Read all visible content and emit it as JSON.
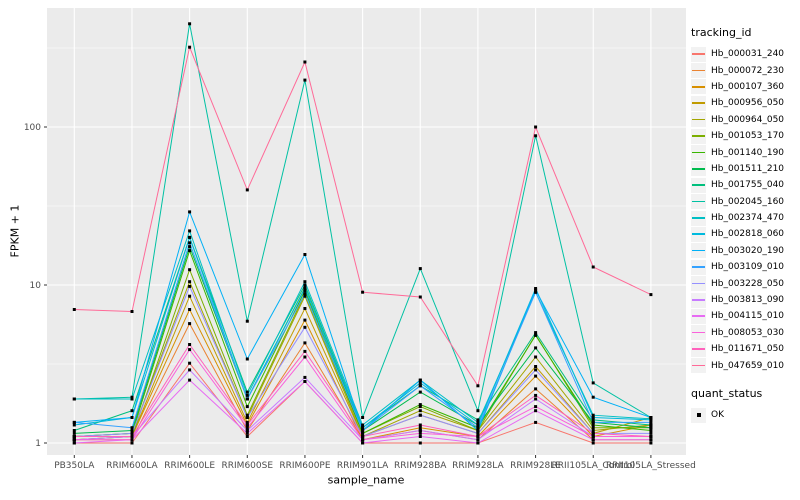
{
  "axes": {
    "y_title": "FPKM + 1",
    "x_title": "sample_name"
  },
  "legend": {
    "tracking_title": "tracking_id",
    "quant_title": "quant_status",
    "quant_label": "OK"
  },
  "colors": {
    "panel_background": "#EBEBEB",
    "grid": "#FFFFFF",
    "tick_text": "#4D4D4D",
    "tick_mark": "#333333",
    "legend_key_background": "#F2F2F2",
    "marker": "#000000"
  },
  "chart_data": {
    "type": "line",
    "title": "",
    "xlabel": "sample_name",
    "ylabel": "FPKM + 1",
    "y_scale": "log10",
    "y_ticks": [
      1,
      10,
      100
    ],
    "y_minor_ticks": [
      3.162,
      31.62,
      316.2
    ],
    "ylim": [
      1,
      480
    ],
    "grid": true,
    "legend_position": "right",
    "marker_shape": "black-square",
    "marker_legend": {
      "title": "quant_status",
      "items": [
        "OK"
      ]
    },
    "categories": [
      "PB350LA",
      "RRIM600LA",
      "RRIM600LE",
      "RRIM600SE",
      "RRIM600PE",
      "RRIM901LA",
      "RRIM928BA",
      "RRIM928LA",
      "RRIM928LE",
      "RRII105LA_Control",
      "RRII105LA_Stressed"
    ],
    "series": [
      {
        "name": "Hb_000031_240",
        "color": "#F8766D",
        "values": [
          1.0,
          1.0,
          3.2,
          1.1,
          2.45,
          1.0,
          1.0,
          1.0,
          1.35,
          1.0,
          1.0
        ]
      },
      {
        "name": "Hb_000072_230",
        "color": "#EA8331",
        "values": [
          1.05,
          1.05,
          5.7,
          1.2,
          4.3,
          1.05,
          1.2,
          1.05,
          2.2,
          1.05,
          1.05
        ]
      },
      {
        "name": "Hb_000107_360",
        "color": "#D89000",
        "values": [
          1.05,
          1.1,
          7.0,
          1.3,
          6.0,
          1.05,
          1.25,
          1.1,
          2.65,
          1.1,
          1.3
        ]
      },
      {
        "name": "Hb_000956_050",
        "color": "#C09B00",
        "values": [
          1.1,
          1.1,
          8.5,
          1.35,
          7.1,
          1.1,
          1.5,
          1.15,
          3.05,
          1.15,
          1.45
        ]
      },
      {
        "name": "Hb_000964_050",
        "color": "#A3A500",
        "values": [
          1.1,
          1.15,
          10.5,
          1.45,
          8.5,
          1.1,
          1.6,
          1.2,
          3.5,
          1.2,
          1.3
        ]
      },
      {
        "name": "Hb_001053_170",
        "color": "#7CAE00",
        "values": [
          1.05,
          1.1,
          12.5,
          1.5,
          8.8,
          1.15,
          1.7,
          1.2,
          4.85,
          1.25,
          1.25
        ]
      },
      {
        "name": "Hb_001140_190",
        "color": "#39B600",
        "values": [
          1.1,
          1.15,
          16.5,
          1.7,
          9.2,
          1.15,
          1.75,
          1.25,
          4.8,
          1.3,
          1.2
        ]
      },
      {
        "name": "Hb_001511_210",
        "color": "#00BB4E",
        "values": [
          1.15,
          1.2,
          17.5,
          1.9,
          9.6,
          1.2,
          2.1,
          1.3,
          4.0,
          1.35,
          1.25
        ]
      },
      {
        "name": "Hb_001755_040",
        "color": "#00BF7D",
        "values": [
          1.2,
          1.6,
          20.0,
          2.1,
          10.0,
          1.25,
          2.3,
          1.4,
          5.0,
          1.4,
          1.3
        ]
      },
      {
        "name": "Hb_002045_160",
        "color": "#00C1A3",
        "values": [
          1.9,
          1.95,
          450,
          5.9,
          198,
          1.45,
          12.7,
          1.6,
          88,
          2.4,
          1.45
        ]
      },
      {
        "name": "Hb_002374_470",
        "color": "#00BFC4",
        "values": [
          1.9,
          1.9,
          22.0,
          2.0,
          10.5,
          1.3,
          2.5,
          1.35,
          9.0,
          1.5,
          1.42
        ]
      },
      {
        "name": "Hb_002818_060",
        "color": "#00BADE",
        "values": [
          1.3,
          1.45,
          20.0,
          1.9,
          9.5,
          1.25,
          2.4,
          1.3,
          9.5,
          1.45,
          1.4
        ]
      },
      {
        "name": "Hb_003020_190",
        "color": "#00B0F6",
        "values": [
          1.35,
          1.45,
          29.0,
          3.4,
          15.6,
          1.2,
          2.5,
          1.2,
          9.3,
          1.95,
          1.45
        ]
      },
      {
        "name": "Hb_003109_010",
        "color": "#35A2FF",
        "values": [
          1.35,
          1.25,
          18.5,
          1.9,
          8.8,
          1.2,
          2.3,
          1.25,
          9.0,
          1.35,
          1.35
        ]
      },
      {
        "name": "Hb_003228_050",
        "color": "#9590FF",
        "values": [
          1.1,
          1.15,
          9.8,
          1.45,
          5.4,
          1.1,
          1.5,
          1.15,
          2.9,
          1.15,
          1.15
        ]
      },
      {
        "name": "Hb_003813_090",
        "color": "#C77CFF",
        "values": [
          1.05,
          1.1,
          2.9,
          1.2,
          2.6,
          1.05,
          1.2,
          1.05,
          1.9,
          1.1,
          1.1
        ]
      },
      {
        "name": "Hb_004115_010",
        "color": "#E76BF3",
        "values": [
          1.0,
          1.05,
          2.5,
          1.15,
          2.45,
          1.0,
          1.1,
          1.0,
          1.6,
          1.05,
          1.05
        ]
      },
      {
        "name": "Hb_008053_030",
        "color": "#FA62DB",
        "values": [
          1.05,
          1.05,
          3.9,
          1.25,
          3.5,
          1.05,
          1.15,
          1.1,
          1.7,
          1.1,
          1.1
        ]
      },
      {
        "name": "Hb_011671_050",
        "color": "#FF62BC",
        "values": [
          1.1,
          1.1,
          4.2,
          1.3,
          3.8,
          1.1,
          1.3,
          1.1,
          2.0,
          1.15,
          1.1
        ]
      },
      {
        "name": "Hb_047659_010",
        "color": "#FF6A98",
        "values": [
          7.0,
          6.8,
          320,
          40,
          258,
          9.0,
          8.4,
          2.3,
          100,
          13,
          8.7
        ]
      }
    ]
  }
}
